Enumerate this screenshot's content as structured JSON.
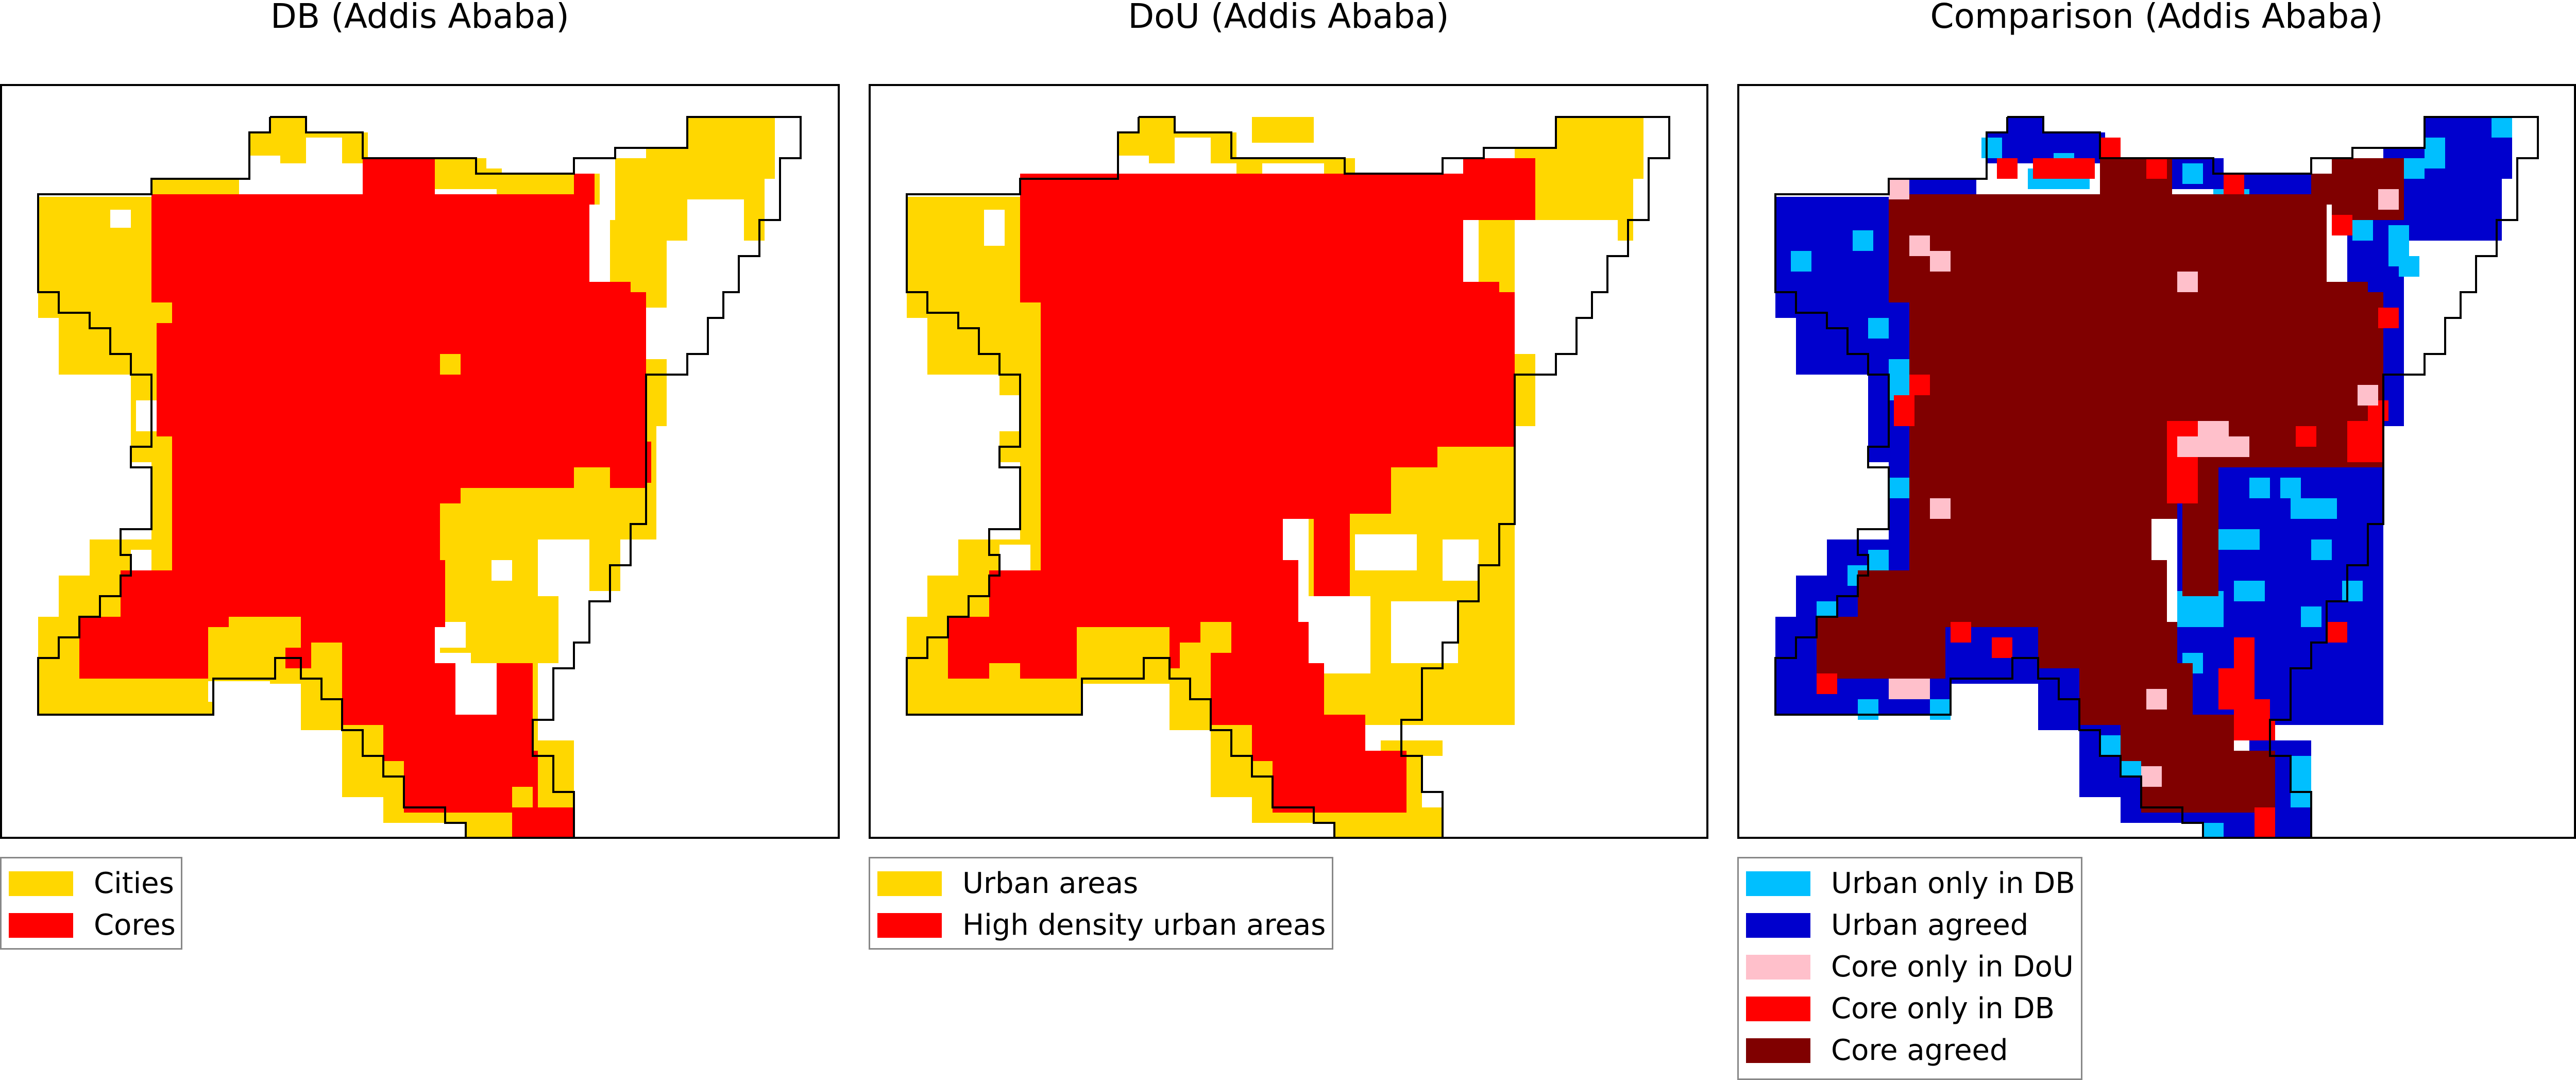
{
  "panels": [
    {
      "id": "db",
      "title": "DB (Addis Ababa)",
      "legend": [
        {
          "label": "Cities",
          "color": "#ffd700"
        },
        {
          "label": "Cores",
          "color": "#ff0000"
        }
      ]
    },
    {
      "id": "dou",
      "title": "DoU (Addis Ababa)",
      "legend": [
        {
          "label": "Urban areas",
          "color": "#ffd700"
        },
        {
          "label": "High density urban areas",
          "color": "#ff0000"
        }
      ]
    },
    {
      "id": "comparison",
      "title": "Comparison (Addis Ababa)",
      "legend": [
        {
          "label": "Urban only in DB",
          "color": "#00bfff"
        },
        {
          "label": "Urban agreed",
          "color": "#0000cd"
        },
        {
          "label": "Core only in DoU",
          "color": "#ffc0cb"
        },
        {
          "label": "Core only in DB",
          "color": "#ff0000"
        },
        {
          "label": "Core agreed",
          "color": "#800000"
        }
      ]
    }
  ]
}
